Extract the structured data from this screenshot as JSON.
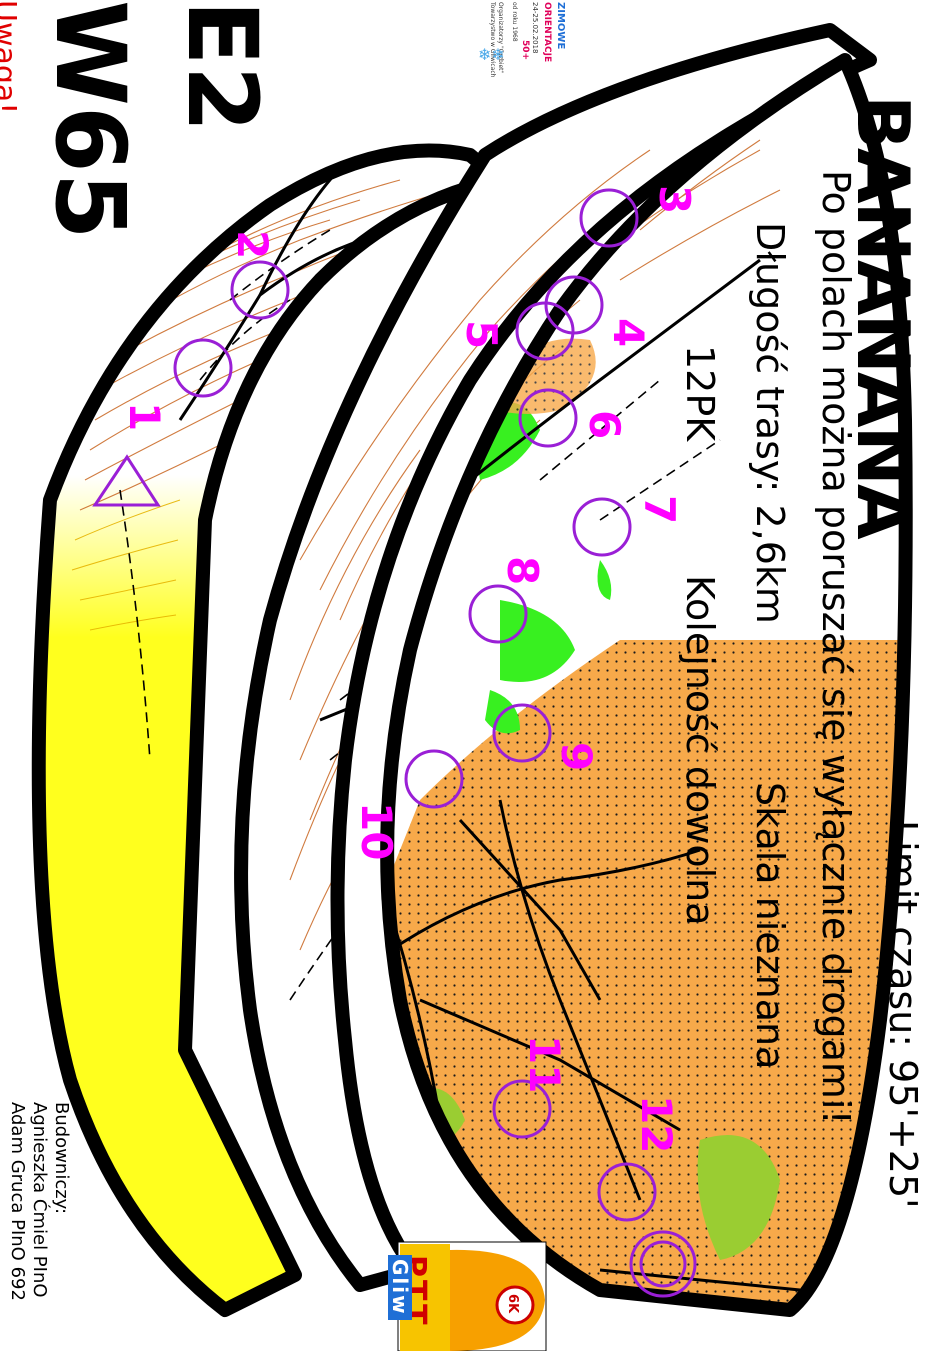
{
  "course": {
    "title": "BANANANA",
    "time_limit": "Limit czasu: 95'+25'",
    "rule": "Po polach można poruszać się wyłącznie drogami!",
    "length": "Długość trasy: 2,6km",
    "scale": "Skala nieznana",
    "controls_count": "12PK",
    "order": "Kolejność dowolna"
  },
  "categories": {
    "line1": "E2",
    "line2": "W65",
    "note": "Uwaga!"
  },
  "builders": {
    "label": "Budowniczy:",
    "name1": "Agnieszka Ćmiel PInO",
    "name2": "Adam Gruca PInO 692"
  },
  "event_logo": {
    "line1": "ZIMOWE",
    "line2": "ORIENTACJE",
    "line3": "24-25.02.2018",
    "line4": "50+",
    "line5": "od roku 1968",
    "line6": "Organizatorzy \"Grzbiet\"",
    "line7": "Towarzystwo w Gliwicach"
  },
  "club_logo": {
    "letters": "PTT",
    "sub": "Gliw",
    "badge": "6K"
  },
  "control_numbers": [
    "1",
    "2",
    "3",
    "4",
    "5",
    "6",
    "7",
    "8",
    "9",
    "10",
    "11",
    "12"
  ],
  "colors": {
    "control": "#9a1fd6",
    "number": "#ff00ff",
    "contour": "#c8641e",
    "forest_green": "#38f020",
    "field_orange": "#f7a94a",
    "banana_yellow": "#ffff1e",
    "outline": "#000000"
  }
}
